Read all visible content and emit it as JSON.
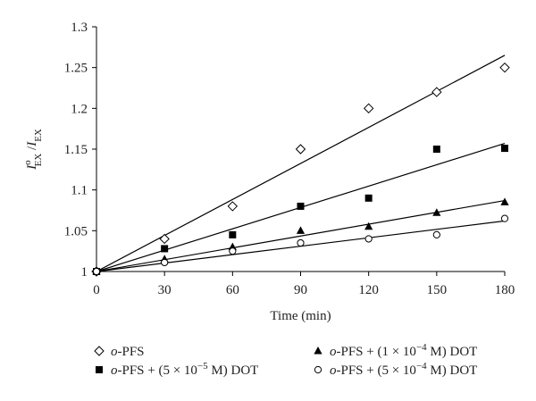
{
  "chart_data": {
    "type": "scatter",
    "xlabel": "Time (min)",
    "ylabel": {
      "main": "I",
      "main_sup": "o",
      "main_sub": "EX",
      "sep": "/",
      "den": "I",
      "den_sub": "EX"
    },
    "xlim": [
      0,
      180
    ],
    "ylim": [
      1,
      1.3
    ],
    "xticks": [
      "0",
      "30",
      "60",
      "90",
      "120",
      "150",
      "180"
    ],
    "yticks": [
      "1",
      "1.05",
      "1.1",
      "1.15",
      "1.2",
      "1.25",
      "1.3"
    ],
    "grid": false,
    "legend_position": "bottom",
    "x": [
      0,
      30,
      60,
      90,
      120,
      150,
      180
    ],
    "series": [
      {
        "marker": "diamond-open",
        "values": [
          1.0,
          1.04,
          1.08,
          1.15,
          1.2,
          1.22,
          1.25
        ],
        "fit": [
          1.0,
          1.265
        ],
        "legend": {
          "pre": "o",
          "text": "-PFS",
          "sup": "",
          "post": ""
        }
      },
      {
        "marker": "square-filled",
        "values": [
          1.0,
          1.028,
          1.045,
          1.08,
          1.09,
          1.15,
          1.151
        ],
        "fit": [
          1.0,
          1.157
        ],
        "legend": {
          "pre": "o",
          "text": "-PFS + (5 × 10",
          "sup": "−5",
          "post": " M) DOT"
        }
      },
      {
        "marker": "triangle-filled",
        "values": [
          1.0,
          1.015,
          1.03,
          1.05,
          1.055,
          1.072,
          1.085
        ],
        "fit": [
          1.0,
          1.087
        ],
        "legend": {
          "pre": "o",
          "text": "-PFS + (1 × 10",
          "sup": "−4",
          "post": " M) DOT"
        }
      },
      {
        "marker": "circle-open",
        "values": [
          1.0,
          1.011,
          1.025,
          1.035,
          1.04,
          1.045,
          1.065
        ],
        "fit": [
          1.0,
          1.062
        ],
        "legend": {
          "pre": "o",
          "text": "-PFS + (5 × 10",
          "sup": "−4",
          "post": " M) DOT"
        }
      }
    ]
  }
}
